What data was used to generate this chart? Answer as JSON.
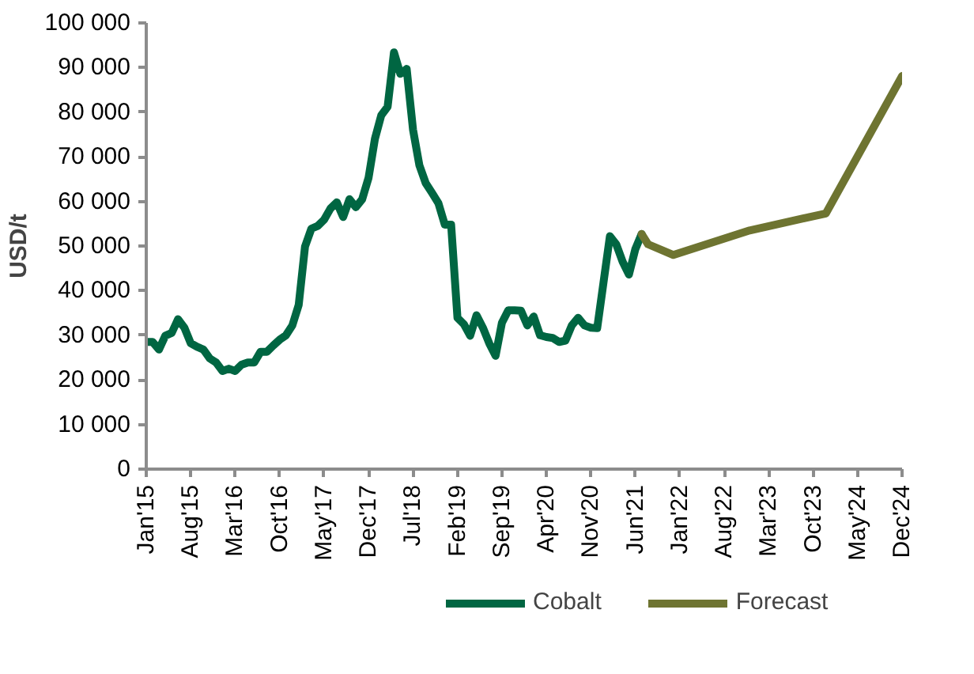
{
  "chart_data": {
    "type": "line",
    "ylabel": "USD/t",
    "xlim": [
      "2015-01",
      "2024-12"
    ],
    "ylim": [
      0,
      100000
    ],
    "xticks": [
      {
        "value": "2015-01",
        "label": "Jan'15"
      },
      {
        "value": "2015-08",
        "label": "Aug'15"
      },
      {
        "value": "2016-03",
        "label": "Mar'16"
      },
      {
        "value": "2016-10",
        "label": "Oct'16"
      },
      {
        "value": "2017-05",
        "label": "May'17"
      },
      {
        "value": "2017-12",
        "label": "Dec'17"
      },
      {
        "value": "2018-07",
        "label": "Jul'18"
      },
      {
        "value": "2019-02",
        "label": "Feb'19"
      },
      {
        "value": "2019-09",
        "label": "Sep'19"
      },
      {
        "value": "2020-04",
        "label": "Apr'20"
      },
      {
        "value": "2020-11",
        "label": "Nov'20"
      },
      {
        "value": "2021-06",
        "label": "Jun'21"
      },
      {
        "value": "2022-01",
        "label": "Jan'22"
      },
      {
        "value": "2022-08",
        "label": "Aug'22"
      },
      {
        "value": "2023-03",
        "label": "Mar'23"
      },
      {
        "value": "2023-10",
        "label": "Oct'23"
      },
      {
        "value": "2024-05",
        "label": "May'24"
      },
      {
        "value": "2024-12",
        "label": "Dec'24"
      }
    ],
    "yticks": [
      {
        "value": 0,
        "label": "0"
      },
      {
        "value": 10000,
        "label": "10 000"
      },
      {
        "value": 20000,
        "label": "20 000"
      },
      {
        "value": 30000,
        "label": "30 000"
      },
      {
        "value": 40000,
        "label": "40 000"
      },
      {
        "value": 50000,
        "label": "50 000"
      },
      {
        "value": 60000,
        "label": "60 000"
      },
      {
        "value": 70000,
        "label": "70 000"
      },
      {
        "value": 80000,
        "label": "80 000"
      },
      {
        "value": 90000,
        "label": "90 000"
      },
      {
        "value": 100000,
        "label": "100 000"
      }
    ],
    "grid": false,
    "legend": "bottom",
    "marker": "none",
    "line_style": "solid",
    "series": [
      {
        "name": "Cobalt",
        "color": "#006642",
        "x": [
          "2015-01",
          "2015-02",
          "2015-03",
          "2015-04",
          "2015-05",
          "2015-06",
          "2015-07",
          "2015-08",
          "2015-09",
          "2015-10",
          "2015-11",
          "2015-12",
          "2016-01",
          "2016-02",
          "2016-03",
          "2016-04",
          "2016-05",
          "2016-06",
          "2016-07",
          "2016-08",
          "2016-09",
          "2016-10",
          "2016-11",
          "2016-12",
          "2017-01",
          "2017-02",
          "2017-03",
          "2017-04",
          "2017-05",
          "2017-06",
          "2017-07",
          "2017-08",
          "2017-09",
          "2017-10",
          "2017-11",
          "2017-12",
          "2018-01",
          "2018-02",
          "2018-03",
          "2018-04",
          "2018-05",
          "2018-06",
          "2018-07",
          "2018-08",
          "2018-09",
          "2018-10",
          "2018-11",
          "2018-12",
          "2019-01",
          "2019-02",
          "2019-03",
          "2019-04",
          "2019-05",
          "2019-06",
          "2019-07",
          "2019-08",
          "2019-09",
          "2019-10",
          "2019-11",
          "2019-12",
          "2020-01",
          "2020-02",
          "2020-03",
          "2020-04",
          "2020-05",
          "2020-06",
          "2020-07",
          "2020-08",
          "2020-09",
          "2020-10",
          "2020-11",
          "2020-12",
          "2021-01",
          "2021-02",
          "2021-03",
          "2021-04",
          "2021-05",
          "2021-06",
          "2021-07"
        ],
        "values": [
          28500,
          28500,
          26800,
          29900,
          30500,
          33600,
          31700,
          28200,
          27400,
          26800,
          24800,
          23900,
          22000,
          22500,
          22000,
          23400,
          23900,
          23900,
          26300,
          26300,
          27700,
          29000,
          30000,
          32200,
          36800,
          49900,
          53900,
          54500,
          55900,
          58400,
          59800,
          56500,
          60500,
          58700,
          60500,
          65300,
          74000,
          79300,
          81200,
          93400,
          88600,
          89700,
          76100,
          68100,
          64100,
          61900,
          59600,
          54800,
          54800,
          33900,
          32500,
          29900,
          34500,
          31700,
          28200,
          25400,
          32800,
          35600,
          35600,
          35500,
          32200,
          34200,
          30000,
          29600,
          29400,
          28500,
          28800,
          32200,
          33900,
          32200,
          31700,
          31600,
          41900,
          52200,
          50400,
          46500,
          43600,
          49300,
          52700
        ]
      },
      {
        "name": "Forecast",
        "color": "#6e7431",
        "x": [
          "2021-07",
          "2021-08",
          "2021-12",
          "2022-12",
          "2023-12",
          "2024-12"
        ],
        "values": [
          52700,
          50400,
          48000,
          53500,
          57300,
          88100
        ]
      }
    ]
  }
}
